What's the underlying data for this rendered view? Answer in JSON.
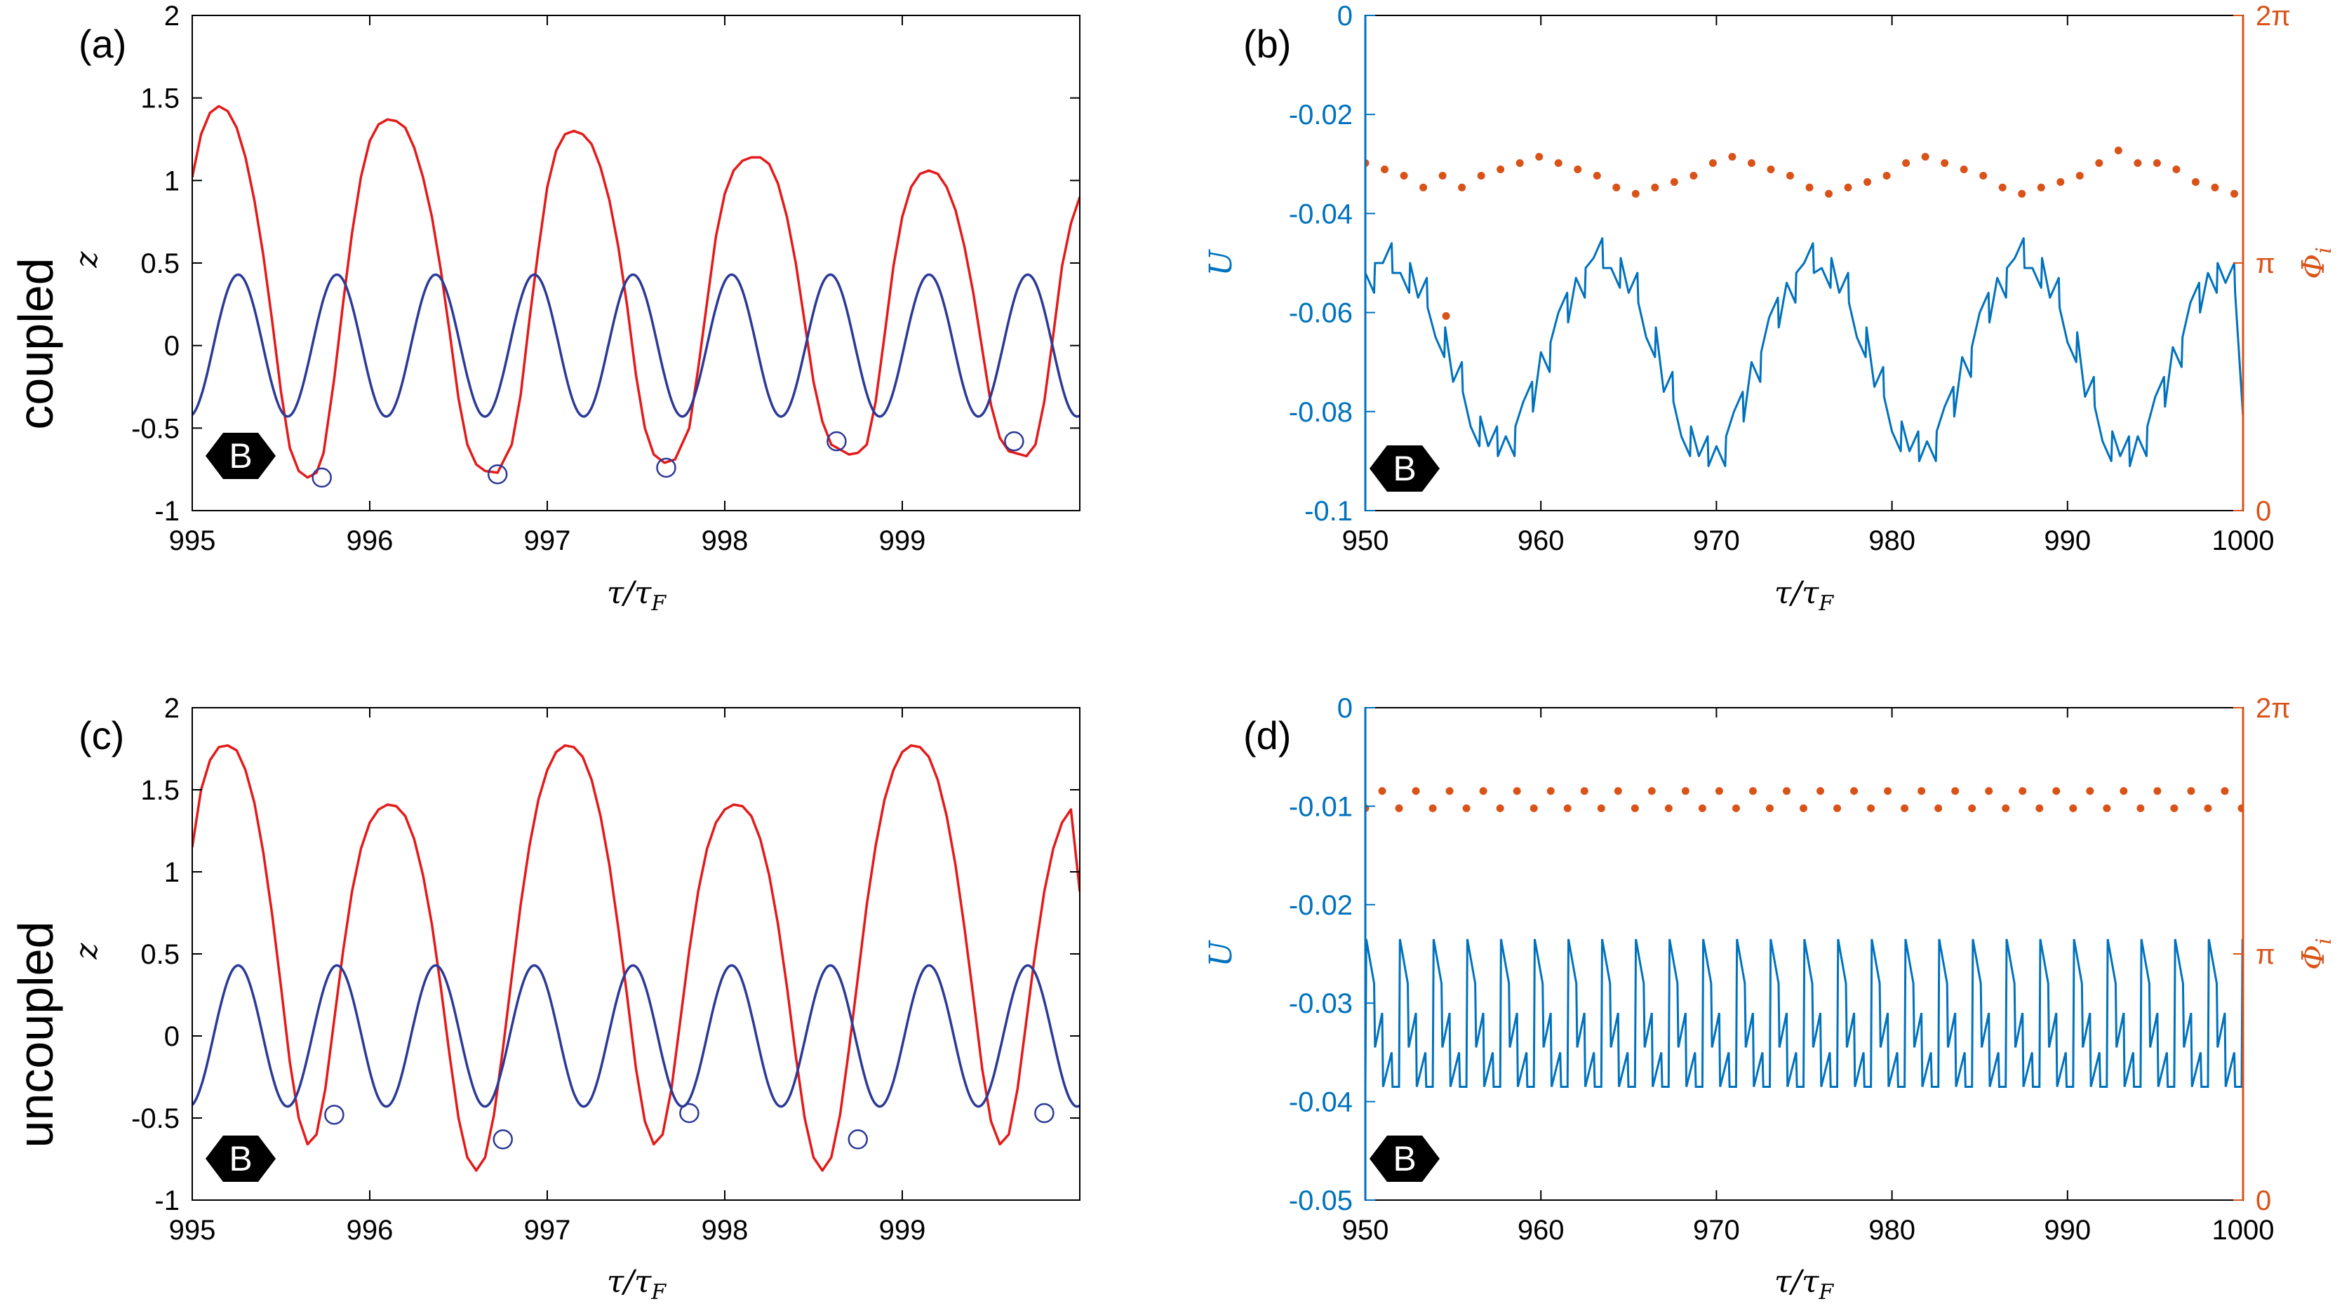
{
  "row_labels": [
    "coupled",
    "uncoupled"
  ],
  "colors": {
    "red": "#e41a1a",
    "navy": "#2b3a96",
    "blue": "#0072bd",
    "orange": "#d95319",
    "black": "#000000"
  },
  "badge_icon": "hexagon-badge-icon",
  "chart_data": [
    {
      "id": "a",
      "type": "line",
      "panel_label": "(a)",
      "badge": "B",
      "xlabel": "τ/τ_F",
      "ylabel": "z",
      "xlim": [
        995,
        1000
      ],
      "ylim": [
        -1,
        2
      ],
      "xticks": [
        995,
        996,
        997,
        998,
        999
      ],
      "xtick_labels": [
        "995",
        "996",
        "997",
        "998",
        "999"
      ],
      "yticks": [
        -1,
        -0.5,
        0,
        0.5,
        1,
        1.5,
        2
      ],
      "ytick_labels": [
        "-1",
        "-0.5",
        "0",
        "0.5",
        "1",
        "1.5",
        "2"
      ],
      "series": [
        {
          "color": "#e41a1a",
          "x": [
            995.0,
            995.05,
            995.1,
            995.15,
            995.2,
            995.25,
            995.3,
            995.35,
            995.4,
            995.45,
            995.5,
            995.55,
            995.6,
            995.65,
            995.7,
            995.74,
            995.8,
            995.85,
            995.9,
            995.95,
            996.0,
            996.05,
            996.1,
            996.15,
            996.2,
            996.25,
            996.3,
            996.35,
            996.4,
            996.45,
            996.5,
            996.55,
            996.6,
            996.65,
            996.72,
            996.8,
            996.85,
            996.9,
            996.95,
            997.0,
            997.05,
            997.1,
            997.15,
            997.2,
            997.25,
            997.3,
            997.35,
            997.4,
            997.45,
            997.5,
            997.55,
            997.6,
            997.66,
            997.72,
            997.8,
            997.85,
            997.9,
            997.95,
            998.0,
            998.05,
            998.1,
            998.15,
            998.2,
            998.25,
            998.3,
            998.35,
            998.4,
            998.45,
            998.5,
            998.55,
            998.6,
            998.7,
            998.75,
            998.8,
            998.85,
            998.9,
            998.95,
            999.0,
            999.05,
            999.1,
            999.15,
            999.2,
            999.25,
            999.3,
            999.35,
            999.4,
            999.45,
            999.5,
            999.55,
            999.6,
            999.7,
            999.75,
            999.8,
            999.85,
            999.9,
            999.95,
            1000.0
          ],
          "y": [
            1.02,
            1.28,
            1.41,
            1.45,
            1.42,
            1.32,
            1.14,
            0.88,
            0.55,
            0.15,
            -0.28,
            -0.62,
            -0.76,
            -0.8,
            -0.77,
            -0.65,
            -0.2,
            0.26,
            0.68,
            1.02,
            1.24,
            1.34,
            1.37,
            1.36,
            1.32,
            1.2,
            1.02,
            0.78,
            0.46,
            0.08,
            -0.32,
            -0.6,
            -0.72,
            -0.76,
            -0.77,
            -0.6,
            -0.3,
            0.16,
            0.58,
            0.96,
            1.18,
            1.28,
            1.3,
            1.28,
            1.22,
            1.08,
            0.88,
            0.6,
            0.24,
            -0.18,
            -0.5,
            -0.66,
            -0.71,
            -0.69,
            -0.5,
            -0.14,
            0.26,
            0.66,
            0.92,
            1.06,
            1.12,
            1.14,
            1.14,
            1.1,
            0.98,
            0.78,
            0.5,
            0.14,
            -0.22,
            -0.46,
            -0.6,
            -0.66,
            -0.65,
            -0.6,
            -0.34,
            0.06,
            0.48,
            0.78,
            0.96,
            1.04,
            1.06,
            1.04,
            0.96,
            0.82,
            0.6,
            0.32,
            -0.02,
            -0.36,
            -0.56,
            -0.64,
            -0.67,
            -0.6,
            -0.34,
            0.06,
            0.48,
            0.74,
            0.9
          ]
        },
        {
          "color": "#2b3a96",
          "function": "0.43*sin(2*pi*(x-995.12)/0.556)",
          "freq_period": 0.556,
          "amplitude": 0.43,
          "phase_x0": 995.12
        }
      ],
      "markers": [
        {
          "x": 995.73,
          "y": -0.8
        },
        {
          "x": 996.72,
          "y": -0.78
        },
        {
          "x": 997.67,
          "y": -0.74
        },
        {
          "x": 998.63,
          "y": -0.58
        },
        {
          "x": 999.63,
          "y": -0.58
        }
      ]
    },
    {
      "id": "b",
      "type": "line",
      "panel_label": "(b)",
      "badge": "B",
      "xlabel": "τ/τ_F",
      "ylabel": "U",
      "ylabel_right": "Φ_i",
      "xlim": [
        950,
        1000
      ],
      "ylim": [
        -0.1,
        0
      ],
      "ylim_right": [
        0,
        6.2832
      ],
      "xticks": [
        950,
        960,
        970,
        980,
        990,
        1000
      ],
      "xtick_labels": [
        "950",
        "960",
        "970",
        "980",
        "990",
        "1000"
      ],
      "yticks": [
        -0.1,
        -0.08,
        -0.06,
        -0.04,
        -0.02,
        0
      ],
      "ytick_labels": [
        "-0.1",
        "-0.08",
        "-0.06",
        "-0.04",
        "-0.02",
        "0"
      ],
      "yticks_right": [
        0,
        3.1416,
        6.2832
      ],
      "ytick_labels_right": [
        "0",
        "π",
        "2π"
      ],
      "series": [
        {
          "color": "#0072bd",
          "axis": "left",
          "x": [
            950,
            951,
            952,
            953,
            954,
            955,
            956,
            957,
            958,
            959,
            960,
            961,
            962,
            963,
            964,
            965,
            966,
            967,
            968,
            969,
            970,
            971,
            972,
            973,
            974,
            975,
            976,
            977,
            978,
            979,
            980,
            981,
            982,
            983,
            984,
            985,
            986,
            987,
            988,
            989,
            990,
            991,
            992,
            993,
            994,
            995,
            996,
            997,
            998,
            999,
            1000
          ],
          "y": [
            -0.052,
            -0.05,
            -0.052,
            -0.057,
            -0.065,
            -0.074,
            -0.083,
            -0.087,
            -0.085,
            -0.078,
            -0.068,
            -0.06,
            -0.053,
            -0.049,
            -0.051,
            -0.056,
            -0.065,
            -0.076,
            -0.085,
            -0.089,
            -0.087,
            -0.08,
            -0.07,
            -0.061,
            -0.054,
            -0.05,
            -0.051,
            -0.056,
            -0.065,
            -0.075,
            -0.084,
            -0.088,
            -0.086,
            -0.079,
            -0.069,
            -0.06,
            -0.053,
            -0.049,
            -0.051,
            -0.057,
            -0.066,
            -0.077,
            -0.086,
            -0.089,
            -0.085,
            -0.077,
            -0.067,
            -0.058,
            -0.052,
            -0.054,
            -0.081
          ]
        },
        {
          "color": "#d95319",
          "axis": "right",
          "style": "dots",
          "x": [
            950,
            951.1,
            952.2,
            953.3,
            954.4,
            955.5,
            956.6,
            957.7,
            958.8,
            959.9,
            961.0,
            962.1,
            963.2,
            964.3,
            965.4,
            966.5,
            967.6,
            968.7,
            969.8,
            970.9,
            972.0,
            973.1,
            974.2,
            975.3,
            976.4,
            977.5,
            978.6,
            979.7,
            980.8,
            981.9,
            983.0,
            984.1,
            985.2,
            986.3,
            987.4,
            988.5,
            989.6,
            990.7,
            991.8,
            992.9,
            994.0,
            995.1,
            996.2,
            997.3,
            998.4,
            999.5,
            954.6
          ],
          "y": [
            4.41,
            4.33,
            4.25,
            4.1,
            4.25,
            4.1,
            4.25,
            4.33,
            4.41,
            4.49,
            4.41,
            4.33,
            4.25,
            4.1,
            4.02,
            4.1,
            4.17,
            4.25,
            4.41,
            4.49,
            4.41,
            4.33,
            4.25,
            4.1,
            4.02,
            4.1,
            4.17,
            4.25,
            4.41,
            4.49,
            4.41,
            4.33,
            4.25,
            4.1,
            4.02,
            4.1,
            4.17,
            4.25,
            4.41,
            4.57,
            4.41,
            4.41,
            4.33,
            4.17,
            4.1,
            4.02,
            2.47
          ]
        }
      ]
    },
    {
      "id": "c",
      "type": "line",
      "panel_label": "(c)",
      "badge": "B",
      "xlabel": "τ/τ_F",
      "ylabel": "z",
      "xlim": [
        995,
        1000
      ],
      "ylim": [
        -1,
        2
      ],
      "xticks": [
        995,
        996,
        997,
        998,
        999
      ],
      "xtick_labels": [
        "995",
        "996",
        "997",
        "998",
        "999"
      ],
      "yticks": [
        -1,
        -0.5,
        0,
        0.5,
        1,
        1.5,
        2
      ],
      "ytick_labels": [
        "-1",
        "-0.5",
        "0",
        "0.5",
        "1",
        "1.5",
        "2"
      ],
      "series": [
        {
          "color": "#e41a1a",
          "x": [
            995.0,
            995.05,
            995.1,
            995.15,
            995.2,
            995.25,
            995.3,
            995.35,
            995.4,
            995.45,
            995.5,
            995.55,
            995.6,
            995.65,
            995.7,
            995.75,
            995.8,
            995.85,
            995.9,
            995.95,
            996.0,
            996.05,
            996.1,
            996.15,
            996.2,
            996.25,
            996.3,
            996.35,
            996.4,
            996.45,
            996.5,
            996.55,
            996.6,
            996.65,
            996.7,
            996.75,
            996.8,
            996.85,
            996.9,
            996.95,
            997.0,
            997.05,
            997.1,
            997.15,
            997.2,
            997.25,
            997.3,
            997.35,
            997.4,
            997.45,
            997.5,
            997.55,
            997.6,
            997.65,
            997.7,
            997.75,
            997.8,
            997.85,
            997.9,
            997.95,
            998.0,
            998.05,
            998.1,
            998.15,
            998.2,
            998.25,
            998.3,
            998.35,
            998.4,
            998.45,
            998.5,
            998.55,
            998.6,
            998.65,
            998.7,
            998.75,
            998.8,
            998.85,
            998.9,
            998.95,
            999.0,
            999.05,
            999.1,
            999.15,
            999.2,
            999.25,
            999.3,
            999.35,
            999.4,
            999.45,
            999.5,
            999.55,
            999.6,
            999.65,
            999.7,
            999.75,
            999.8,
            999.85,
            999.9,
            999.95,
            1000.0
          ],
          "y": [
            1.15,
            1.5,
            1.68,
            1.76,
            1.77,
            1.74,
            1.62,
            1.42,
            1.12,
            0.74,
            0.3,
            -0.16,
            -0.5,
            -0.66,
            -0.6,
            -0.32,
            0.1,
            0.52,
            0.88,
            1.14,
            1.3,
            1.38,
            1.41,
            1.4,
            1.34,
            1.2,
            0.98,
            0.68,
            0.3,
            -0.12,
            -0.5,
            -0.74,
            -0.82,
            -0.74,
            -0.48,
            -0.08,
            0.36,
            0.8,
            1.16,
            1.44,
            1.62,
            1.73,
            1.77,
            1.76,
            1.7,
            1.56,
            1.34,
            1.04,
            0.66,
            0.24,
            -0.2,
            -0.52,
            -0.66,
            -0.6,
            -0.32,
            0.1,
            0.52,
            0.88,
            1.14,
            1.3,
            1.38,
            1.41,
            1.4,
            1.34,
            1.2,
            0.98,
            0.68,
            0.3,
            -0.12,
            -0.5,
            -0.74,
            -0.82,
            -0.74,
            -0.48,
            -0.08,
            0.36,
            0.8,
            1.16,
            1.44,
            1.62,
            1.73,
            1.77,
            1.76,
            1.7,
            1.56,
            1.34,
            1.04,
            0.66,
            0.24,
            -0.2,
            -0.52,
            -0.66,
            -0.6,
            -0.32,
            0.1,
            0.52,
            0.88,
            1.14,
            1.3,
            1.38,
            0.88
          ]
        },
        {
          "color": "#2b3a96",
          "function": "0.43*sin(2*pi*(x-995.12)/0.556)",
          "freq_period": 0.556,
          "amplitude": 0.43,
          "phase_x0": 995.12
        }
      ],
      "markers": [
        {
          "x": 995.8,
          "y": -0.48
        },
        {
          "x": 996.75,
          "y": -0.63
        },
        {
          "x": 997.8,
          "y": -0.47
        },
        {
          "x": 998.75,
          "y": -0.63
        },
        {
          "x": 999.8,
          "y": -0.47
        }
      ]
    },
    {
      "id": "d",
      "type": "line",
      "panel_label": "(d)",
      "badge": "B",
      "xlabel": "τ/τ_F",
      "ylabel": "U",
      "ylabel_right": "Φ_i",
      "xlim": [
        950,
        1000
      ],
      "ylim": [
        -0.05,
        0
      ],
      "ylim_right": [
        0,
        6.2832
      ],
      "xticks": [
        950,
        960,
        970,
        980,
        990,
        1000
      ],
      "xtick_labels": [
        "950",
        "960",
        "970",
        "980",
        "990",
        "1000"
      ],
      "yticks": [
        -0.05,
        -0.04,
        -0.03,
        -0.02,
        -0.01,
        0
      ],
      "ytick_labels": [
        "-0.05",
        "-0.04",
        "-0.03",
        "-0.02",
        "-0.01",
        "0"
      ],
      "yticks_right": [
        0,
        3.1416,
        6.2832
      ],
      "ytick_labels_right": [
        "0",
        "π",
        "2π"
      ],
      "series": [
        {
          "color": "#0072bd",
          "axis": "left",
          "pattern": "periodic",
          "period": 1.92,
          "x": [
            0,
            0.05,
            0.5,
            0.55,
            0.96,
            1.01,
            1.5,
            1.55,
            1.92
          ],
          "y": [
            -0.0385,
            -0.0235,
            -0.028,
            -0.0345,
            -0.031,
            -0.0385,
            -0.035,
            -0.0385,
            -0.0385
          ]
        },
        {
          "color": "#d95319",
          "axis": "right",
          "style": "dots",
          "x_start": 950,
          "x_step": 0.96,
          "y_alt": [
            5.0,
            5.22
          ]
        }
      ]
    }
  ]
}
